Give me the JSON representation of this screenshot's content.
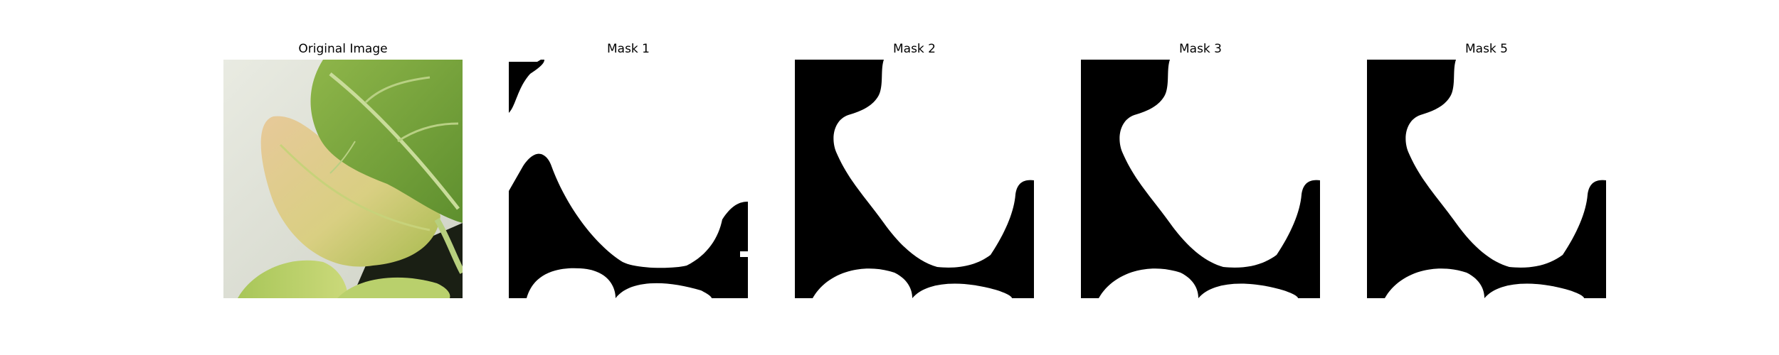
{
  "figure": {
    "panels": [
      {
        "title": "Original Image",
        "kind": "photo"
      },
      {
        "title": "Mask 1",
        "kind": "mask"
      },
      {
        "title": "Mask 2",
        "kind": "mask"
      },
      {
        "title": "Mask 3",
        "kind": "mask"
      },
      {
        "title": "Mask 5",
        "kind": "mask"
      }
    ]
  },
  "colors": {
    "mask_foreground": "#ffffff",
    "mask_background": "#000000",
    "leaf_green": "#7aa63a",
    "leaf_yellow": "#d8c27a",
    "background_paper": "#e6e8df"
  }
}
